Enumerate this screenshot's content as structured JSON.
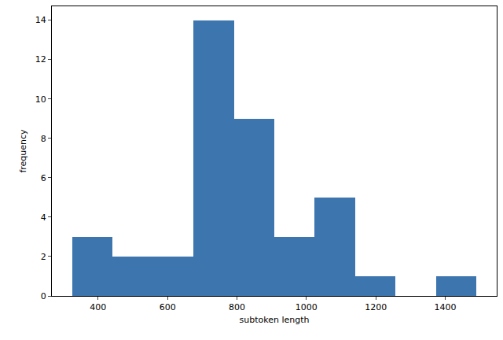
{
  "chart_data": {
    "type": "histogram",
    "x_label": "subtoken length",
    "y_label": "frequency",
    "bins": [
      325,
      442,
      558,
      675,
      791,
      908,
      1024,
      1141,
      1257,
      1374,
      1490
    ],
    "counts": [
      3,
      2,
      2,
      14,
      9,
      3,
      5,
      1,
      0,
      1
    ],
    "color": "#3d76af",
    "xlim": [
      267,
      1548
    ],
    "xticks": [
      400,
      600,
      800,
      1000,
      1200,
      1400
    ],
    "ylim": [
      0,
      14.7
    ],
    "yticks": [
      0,
      2,
      4,
      6,
      8,
      10,
      12,
      14
    ],
    "grid": false
  }
}
